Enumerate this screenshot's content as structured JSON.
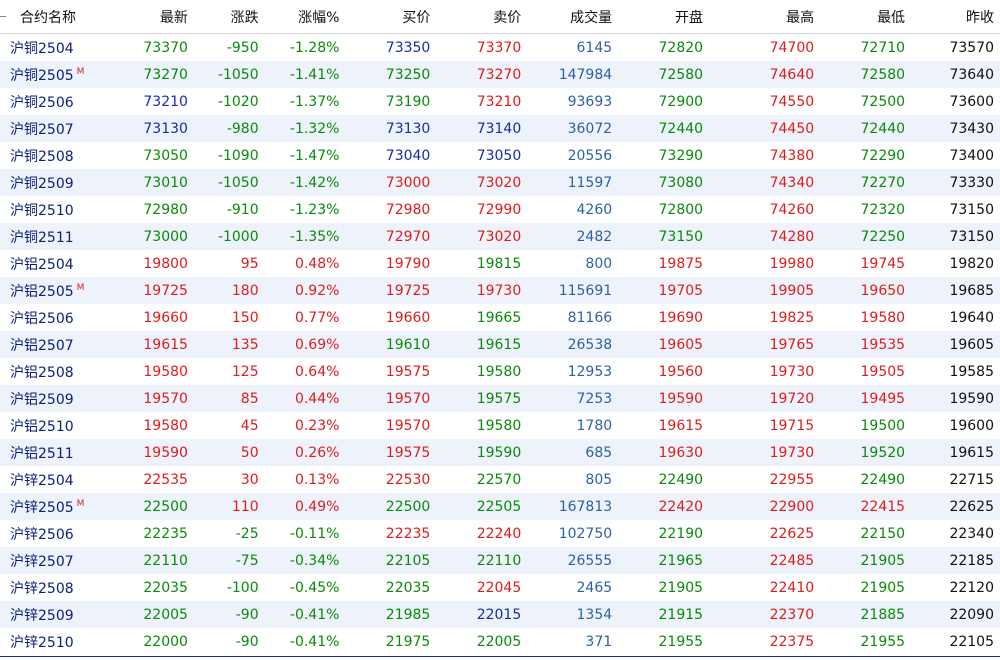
{
  "header": {
    "columns": [
      "合约名称",
      "最新",
      "涨跌",
      "涨幅%",
      "买价",
      "卖价",
      "成交量",
      "开盘",
      "最高",
      "最低",
      "昨收"
    ]
  },
  "colors": {
    "up": "#e01b1b",
    "down": "#0a8a0a",
    "flat": "#111111",
    "blue": "#1a2aa8",
    "volume": "#2e5fa8",
    "name": "#0b1f7a",
    "row_alt": "#eef3fb"
  },
  "rows": [
    {
      "name": "沪铜2504",
      "m": "",
      "last": "73370",
      "chg": "-950",
      "pct": "-1.28%",
      "bid": "73350",
      "ask": "73370",
      "vol": "6145",
      "open": "72820",
      "high": "74700",
      "low": "72710",
      "prev": "73570",
      "c": {
        "last": "down",
        "bid": "blue",
        "ask": "up",
        "open": "down",
        "high": "up",
        "low": "down"
      }
    },
    {
      "name": "沪铜2505",
      "m": "M",
      "last": "73270",
      "chg": "-1050",
      "pct": "-1.41%",
      "bid": "73250",
      "ask": "73270",
      "vol": "147984",
      "open": "72580",
      "high": "74640",
      "low": "72580",
      "prev": "73640",
      "c": {
        "last": "down",
        "bid": "down",
        "ask": "up",
        "open": "down",
        "high": "up",
        "low": "down"
      }
    },
    {
      "name": "沪铜2506",
      "m": "",
      "last": "73210",
      "chg": "-1020",
      "pct": "-1.37%",
      "bid": "73190",
      "ask": "73210",
      "vol": "93693",
      "open": "72900",
      "high": "74550",
      "low": "72500",
      "prev": "73600",
      "c": {
        "last": "blue",
        "bid": "down",
        "ask": "up",
        "open": "down",
        "high": "up",
        "low": "down"
      }
    },
    {
      "name": "沪铜2507",
      "m": "",
      "last": "73130",
      "chg": "-980",
      "pct": "-1.32%",
      "bid": "73130",
      "ask": "73140",
      "vol": "36072",
      "open": "72440",
      "high": "74450",
      "low": "72440",
      "prev": "73430",
      "c": {
        "last": "blue",
        "bid": "blue",
        "ask": "blue",
        "open": "down",
        "high": "up",
        "low": "down"
      }
    },
    {
      "name": "沪铜2508",
      "m": "",
      "last": "73050",
      "chg": "-1090",
      "pct": "-1.47%",
      "bid": "73040",
      "ask": "73050",
      "vol": "20556",
      "open": "73290",
      "high": "74380",
      "low": "72290",
      "prev": "73400",
      "c": {
        "last": "down",
        "bid": "blue",
        "ask": "blue",
        "open": "down",
        "high": "up",
        "low": "down"
      }
    },
    {
      "name": "沪铜2509",
      "m": "",
      "last": "73010",
      "chg": "-1050",
      "pct": "-1.42%",
      "bid": "73000",
      "ask": "73020",
      "vol": "11597",
      "open": "73080",
      "high": "74340",
      "low": "72270",
      "prev": "73330",
      "c": {
        "last": "down",
        "bid": "up",
        "ask": "up",
        "open": "down",
        "high": "up",
        "low": "down"
      }
    },
    {
      "name": "沪铜2510",
      "m": "",
      "last": "72980",
      "chg": "-910",
      "pct": "-1.23%",
      "bid": "72980",
      "ask": "72990",
      "vol": "4260",
      "open": "72800",
      "high": "74260",
      "low": "72320",
      "prev": "73150",
      "c": {
        "last": "down",
        "bid": "up",
        "ask": "up",
        "open": "down",
        "high": "up",
        "low": "down"
      }
    },
    {
      "name": "沪铜2511",
      "m": "",
      "last": "73000",
      "chg": "-1000",
      "pct": "-1.35%",
      "bid": "72970",
      "ask": "73020",
      "vol": "2482",
      "open": "73150",
      "high": "74280",
      "low": "72250",
      "prev": "73150",
      "c": {
        "last": "down",
        "bid": "up",
        "ask": "up",
        "open": "down",
        "high": "up",
        "low": "down"
      }
    },
    {
      "name": "沪铝2504",
      "m": "",
      "last": "19800",
      "chg": "95",
      "pct": "0.48%",
      "bid": "19790",
      "ask": "19815",
      "vol": "800",
      "open": "19875",
      "high": "19980",
      "low": "19745",
      "prev": "19820",
      "c": {
        "last": "up",
        "bid": "up",
        "ask": "down",
        "open": "up",
        "high": "up",
        "low": "up"
      }
    },
    {
      "name": "沪铝2505",
      "m": "M",
      "last": "19725",
      "chg": "180",
      "pct": "0.92%",
      "bid": "19725",
      "ask": "19730",
      "vol": "115691",
      "open": "19705",
      "high": "19905",
      "low": "19650",
      "prev": "19685",
      "c": {
        "last": "up",
        "bid": "up",
        "ask": "up",
        "open": "up",
        "high": "up",
        "low": "up"
      }
    },
    {
      "name": "沪铝2506",
      "m": "",
      "last": "19660",
      "chg": "150",
      "pct": "0.77%",
      "bid": "19660",
      "ask": "19665",
      "vol": "81166",
      "open": "19690",
      "high": "19825",
      "low": "19580",
      "prev": "19640",
      "c": {
        "last": "up",
        "bid": "up",
        "ask": "down",
        "open": "up",
        "high": "up",
        "low": "up"
      }
    },
    {
      "name": "沪铝2507",
      "m": "",
      "last": "19615",
      "chg": "135",
      "pct": "0.69%",
      "bid": "19610",
      "ask": "19615",
      "vol": "26538",
      "open": "19605",
      "high": "19765",
      "low": "19535",
      "prev": "19605",
      "c": {
        "last": "up",
        "bid": "down",
        "ask": "down",
        "open": "up",
        "high": "up",
        "low": "up"
      }
    },
    {
      "name": "沪铝2508",
      "m": "",
      "last": "19580",
      "chg": "125",
      "pct": "0.64%",
      "bid": "19575",
      "ask": "19580",
      "vol": "12953",
      "open": "19560",
      "high": "19730",
      "low": "19505",
      "prev": "19585",
      "c": {
        "last": "up",
        "bid": "up",
        "ask": "down",
        "open": "up",
        "high": "up",
        "low": "up"
      }
    },
    {
      "name": "沪铝2509",
      "m": "",
      "last": "19570",
      "chg": "85",
      "pct": "0.44%",
      "bid": "19570",
      "ask": "19575",
      "vol": "7253",
      "open": "19590",
      "high": "19720",
      "low": "19495",
      "prev": "19590",
      "c": {
        "last": "up",
        "bid": "up",
        "ask": "down",
        "open": "up",
        "high": "up",
        "low": "up"
      }
    },
    {
      "name": "沪铝2510",
      "m": "",
      "last": "19580",
      "chg": "45",
      "pct": "0.23%",
      "bid": "19570",
      "ask": "19580",
      "vol": "1780",
      "open": "19615",
      "high": "19715",
      "low": "19500",
      "prev": "19600",
      "c": {
        "last": "up",
        "bid": "up",
        "ask": "down",
        "open": "up",
        "high": "up",
        "low": "down"
      }
    },
    {
      "name": "沪铝2511",
      "m": "",
      "last": "19590",
      "chg": "50",
      "pct": "0.26%",
      "bid": "19575",
      "ask": "19590",
      "vol": "685",
      "open": "19630",
      "high": "19730",
      "low": "19520",
      "prev": "19615",
      "c": {
        "last": "up",
        "bid": "up",
        "ask": "down",
        "open": "up",
        "high": "up",
        "low": "down"
      }
    },
    {
      "name": "沪锌2504",
      "m": "",
      "last": "22535",
      "chg": "30",
      "pct": "0.13%",
      "bid": "22530",
      "ask": "22570",
      "vol": "805",
      "open": "22490",
      "high": "22955",
      "low": "22490",
      "prev": "22715",
      "c": {
        "last": "up",
        "bid": "up",
        "ask": "down",
        "open": "down",
        "high": "up",
        "low": "down"
      }
    },
    {
      "name": "沪锌2505",
      "m": "M",
      "last": "22500",
      "chg": "110",
      "pct": "0.49%",
      "bid": "22500",
      "ask": "22505",
      "vol": "167813",
      "open": "22420",
      "high": "22900",
      "low": "22415",
      "prev": "22625",
      "c": {
        "last": "down",
        "bid": "down",
        "ask": "down",
        "open": "up",
        "high": "up",
        "low": "up"
      }
    },
    {
      "name": "沪锌2506",
      "m": "",
      "last": "22235",
      "chg": "-25",
      "pct": "-0.11%",
      "bid": "22235",
      "ask": "22240",
      "vol": "102750",
      "open": "22190",
      "high": "22625",
      "low": "22150",
      "prev": "22340",
      "c": {
        "last": "down",
        "bid": "up",
        "ask": "up",
        "open": "down",
        "high": "up",
        "low": "down"
      }
    },
    {
      "name": "沪锌2507",
      "m": "",
      "last": "22110",
      "chg": "-75",
      "pct": "-0.34%",
      "bid": "22105",
      "ask": "22110",
      "vol": "26555",
      "open": "21965",
      "high": "22485",
      "low": "21905",
      "prev": "22185",
      "c": {
        "last": "down",
        "bid": "down",
        "ask": "down",
        "open": "down",
        "high": "up",
        "low": "down"
      }
    },
    {
      "name": "沪锌2508",
      "m": "",
      "last": "22035",
      "chg": "-100",
      "pct": "-0.45%",
      "bid": "22035",
      "ask": "22045",
      "vol": "2465",
      "open": "21905",
      "high": "22410",
      "low": "21905",
      "prev": "22120",
      "c": {
        "last": "down",
        "bid": "down",
        "ask": "up",
        "open": "down",
        "high": "up",
        "low": "down"
      }
    },
    {
      "name": "沪锌2509",
      "m": "",
      "last": "22005",
      "chg": "-90",
      "pct": "-0.41%",
      "bid": "21985",
      "ask": "22015",
      "vol": "1354",
      "open": "21915",
      "high": "22370",
      "low": "21885",
      "prev": "22090",
      "c": {
        "last": "down",
        "bid": "down",
        "ask": "blue",
        "open": "down",
        "high": "up",
        "low": "down"
      }
    },
    {
      "name": "沪锌2510",
      "m": "",
      "last": "22000",
      "chg": "-90",
      "pct": "-0.41%",
      "bid": "21975",
      "ask": "22005",
      "vol": "371",
      "open": "21955",
      "high": "22375",
      "low": "21955",
      "prev": "22105",
      "c": {
        "last": "down",
        "bid": "down",
        "ask": "down",
        "open": "down",
        "high": "up",
        "low": "down"
      }
    }
  ]
}
